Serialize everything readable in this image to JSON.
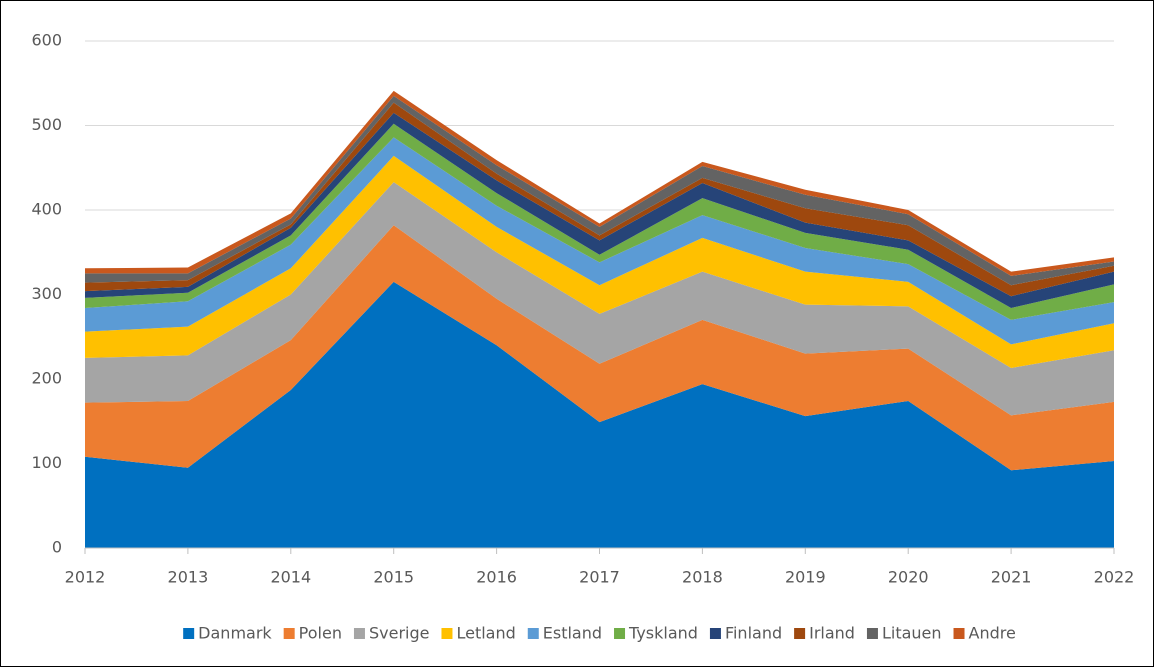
{
  "chart_data": {
    "type": "stacked_area",
    "categories": [
      "2012",
      "2013",
      "2014",
      "2015",
      "2016",
      "2017",
      "2018",
      "2019",
      "2020",
      "2021",
      "2022"
    ],
    "series": [
      {
        "name": "Danmark",
        "color": "#0070c0",
        "values": [
          108,
          95,
          187,
          315,
          240,
          149,
          194,
          156,
          174,
          92,
          103
        ]
      },
      {
        "name": "Polen",
        "color": "#ed7d31",
        "values": [
          64,
          79,
          59,
          67,
          55,
          69,
          76,
          74,
          62,
          65,
          70
        ]
      },
      {
        "name": "Sverige",
        "color": "#a5a5a5",
        "values": [
          53,
          54,
          54,
          51,
          55,
          59,
          57,
          58,
          50,
          56,
          61
        ]
      },
      {
        "name": "Letland",
        "color": "#ffc000",
        "values": [
          31,
          34,
          31,
          31,
          30,
          34,
          40,
          39,
          29,
          28,
          32
        ]
      },
      {
        "name": "Estland",
        "color": "#5b9bd5",
        "values": [
          28,
          30,
          28,
          22,
          25,
          27,
          27,
          28,
          21,
          29,
          25
        ]
      },
      {
        "name": "Tyskland",
        "color": "#70ad47",
        "values": [
          12,
          10,
          11,
          16,
          15,
          9,
          20,
          18,
          17,
          14,
          21
        ]
      },
      {
        "name": "Finland",
        "color": "#264478",
        "values": [
          8,
          7,
          9,
          13,
          15,
          17,
          18,
          12,
          11,
          14,
          15
        ]
      },
      {
        "name": "Irland",
        "color": "#9e480e",
        "values": [
          10,
          8,
          4,
          12,
          8,
          6,
          6,
          17,
          18,
          13,
          7
        ]
      },
      {
        "name": "Litauen",
        "color": "#636363",
        "values": [
          11,
          8,
          7,
          8,
          10,
          10,
          14,
          16,
          13,
          11,
          5
        ]
      },
      {
        "name": "Andre",
        "color": "#c9581d",
        "values": [
          6,
          7,
          6,
          6,
          6,
          4,
          5,
          6,
          5,
          5,
          5
        ]
      }
    ],
    "ylim": [
      0,
      600
    ],
    "yticks": [
      0,
      100,
      200,
      300,
      400,
      500,
      600
    ],
    "grid": true,
    "legend": "bottom"
  }
}
